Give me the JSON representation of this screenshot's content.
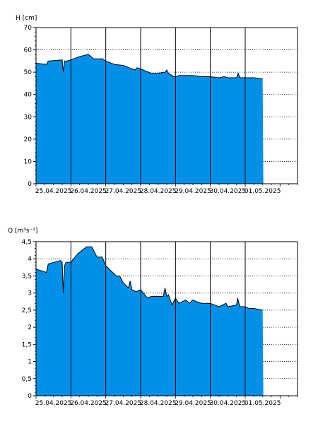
{
  "chart_data": [
    {
      "type": "area",
      "ylabel": "H [cm]",
      "ylim": [
        0,
        70
      ],
      "yticks": [
        0,
        10,
        20,
        30,
        40,
        50,
        60,
        70
      ],
      "ytick_labels": [
        "0",
        "10",
        "20",
        "30",
        "40",
        "50",
        "60",
        "70"
      ],
      "xlim": [
        0,
        7.5
      ],
      "xtick_labels": [
        "25.04.2025",
        "26.04.2025",
        "27.04.2025",
        "28.04.2025",
        "29.04.2025",
        "30.04.2025",
        "01.05.2025"
      ],
      "day_lines": [
        1,
        2,
        3,
        4,
        5,
        6
      ],
      "grid": "dotted horizontal",
      "fill_color": "#0090e8",
      "series": [
        {
          "x": [
            0,
            0.3,
            0.35,
            0.75,
            0.78,
            0.82,
            0.88,
            1.0,
            1.25,
            1.5,
            1.65,
            1.9,
            2.0,
            2.25,
            2.5,
            2.75,
            2.85,
            2.9,
            3.0,
            3.3,
            3.5,
            3.7,
            3.75,
            3.8,
            3.95,
            4.0,
            4.1,
            4.25,
            4.5,
            4.75,
            5.0,
            5.25,
            5.4,
            5.5,
            5.75,
            5.8,
            5.85,
            6.0,
            6.25,
            6.5,
            6.52
          ],
          "y": [
            54,
            53.5,
            55,
            55.5,
            50,
            55,
            55,
            55.5,
            57,
            58,
            56,
            56,
            55,
            53.5,
            53,
            51.5,
            51,
            52,
            51.5,
            49.5,
            49.5,
            50,
            51,
            49.5,
            48,
            48,
            48.5,
            48.5,
            48.5,
            48,
            48,
            47.5,
            48,
            47.5,
            47.5,
            49.5,
            47.5,
            47.5,
            47.5,
            47,
            0
          ]
        }
      ]
    },
    {
      "type": "area",
      "ylabel": "Q [m³s⁻¹]",
      "ylim": [
        0,
        4.5
      ],
      "yticks": [
        0,
        0.5,
        1,
        1.5,
        2,
        2.5,
        3,
        3.5,
        4,
        4.5
      ],
      "ytick_labels": [
        "0",
        "0,5",
        "1",
        "1,5",
        "2",
        "2,5",
        "3",
        "3,5",
        "4",
        "4,5"
      ],
      "xlim": [
        0,
        7.5
      ],
      "xtick_labels": [
        "25.04.2025",
        "26.04.2025",
        "27.04.2025",
        "28.04.2025",
        "29.04.2025",
        "30.04.2025",
        "01.05.2025"
      ],
      "day_lines": [
        1,
        2,
        3,
        4,
        5,
        6
      ],
      "grid": "dotted horizontal",
      "fill_color": "#0090e8",
      "series": [
        {
          "x": [
            0,
            0.3,
            0.35,
            0.7,
            0.75,
            0.78,
            0.82,
            0.86,
            1.0,
            1.2,
            1.45,
            1.6,
            1.75,
            1.9,
            2.0,
            2.2,
            2.3,
            2.4,
            2.5,
            2.65,
            2.7,
            2.75,
            2.85,
            2.9,
            3.0,
            3.2,
            3.3,
            3.5,
            3.65,
            3.7,
            3.75,
            3.8,
            3.9,
            4.0,
            4.1,
            4.3,
            4.4,
            4.5,
            4.6,
            4.75,
            5.0,
            5.25,
            5.35,
            5.45,
            5.5,
            5.75,
            5.78,
            5.82,
            5.85,
            6.0,
            6.1,
            6.25,
            6.5,
            6.52
          ],
          "y": [
            3.7,
            3.6,
            3.85,
            3.95,
            3.9,
            3,
            3.8,
            3.9,
            3.9,
            4.15,
            4.35,
            4.35,
            4.05,
            4.05,
            3.8,
            3.6,
            3.5,
            3.5,
            3.3,
            3.15,
            3.35,
            3.1,
            3.05,
            3.05,
            3.1,
            2.85,
            2.9,
            2.9,
            2.9,
            3.15,
            2.9,
            2.95,
            2.65,
            2.85,
            2.7,
            2.8,
            2.7,
            2.8,
            2.75,
            2.7,
            2.7,
            2.6,
            2.65,
            2.7,
            2.6,
            2.65,
            2.85,
            2.7,
            2.6,
            2.6,
            2.55,
            2.55,
            2.5,
            0
          ]
        }
      ]
    }
  ]
}
